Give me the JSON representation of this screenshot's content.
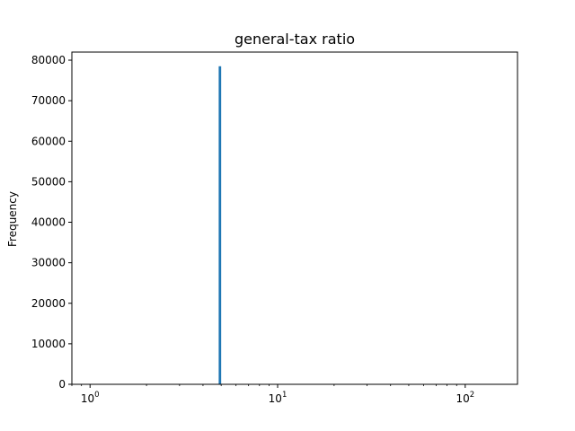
{
  "chart_data": {
    "type": "bar",
    "title": "general-tax ratio",
    "xlabel": "",
    "ylabel": "Frequency",
    "x_scale": "log",
    "xlim": [
      0.8,
      190
    ],
    "ylim": [
      0,
      82000
    ],
    "x_ticks": [
      {
        "base": "10",
        "exp": "0",
        "value": 1
      },
      {
        "base": "10",
        "exp": "1",
        "value": 10
      },
      {
        "base": "10",
        "exp": "2",
        "value": 100
      }
    ],
    "y_ticks": [
      0,
      10000,
      20000,
      30000,
      40000,
      50000,
      60000,
      70000,
      80000
    ],
    "bars": [
      {
        "x0": 4.85,
        "x1": 5.0,
        "value": 78500
      }
    ],
    "bar_color": "#1f77b4",
    "grid": false,
    "legend": "none"
  }
}
